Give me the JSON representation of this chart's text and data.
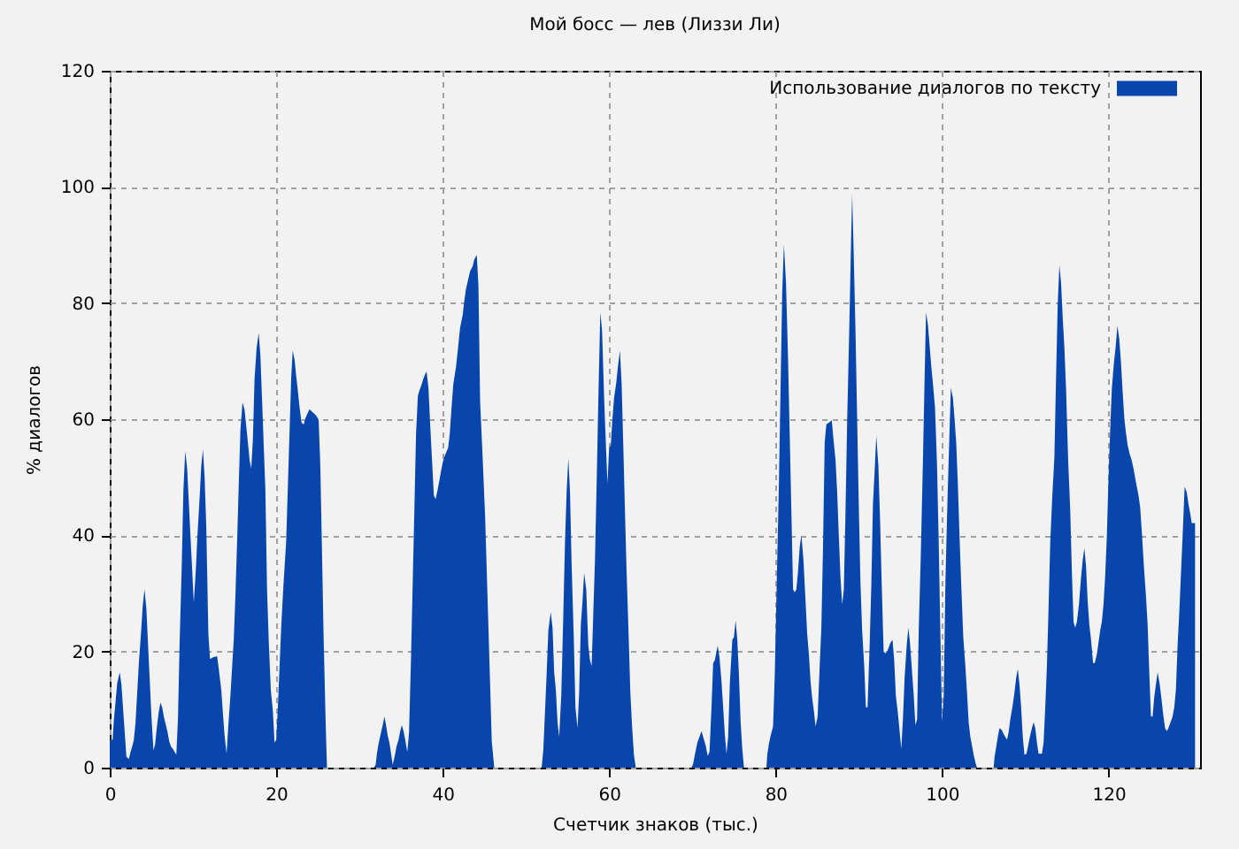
{
  "chart_data": {
    "type": "area",
    "title": "Мой босс — лев (Лиззи Ли)",
    "xlabel": "Счетчик знаков (тыс.)",
    "ylabel": "% диалогов",
    "x": [
      0,
      0.35,
      0.5,
      0.7,
      0.9,
      1.2,
      1.4,
      1.6,
      1.8,
      2.0,
      2.3,
      2.5,
      2.7,
      2.9,
      3.1,
      3.3,
      3.5,
      3.75,
      3.97,
      4.18,
      4.4,
      4.6,
      4.8,
      5.0,
      5.25,
      5.45,
      5.67,
      5.9,
      6.1,
      6.3,
      6.5,
      6.7,
      6.95,
      7.15,
      7.37,
      7.6,
      7.8,
      8.0,
      8.2,
      8.4,
      8.65,
      8.85,
      9.07,
      9.3,
      9.5,
      9.7,
      9.9,
      10.1,
      10.35,
      10.55,
      10.78,
      11.0,
      11.2,
      11.4,
      11.6,
      11.85,
      12.05,
      12.4,
      12.9,
      13.1,
      13.4,
      13.6,
      13.8,
      14.04,
      14.25,
      14.5,
      14.7,
      14.9,
      15.1,
      15.3,
      15.5,
      15.7,
      15.95,
      16.2,
      16.4,
      16.6,
      16.8,
      17.0,
      17.2,
      17.4,
      17.65,
      17.9,
      18.1,
      18.3,
      18.5,
      18.7,
      18.9,
      19.1,
      19.35,
      19.6,
      19.8,
      20.0,
      20.2,
      20.4,
      20.6,
      20.85,
      21.2,
      21.4,
      21.6,
      21.8,
      21.98,
      22.2,
      22.4,
      22.6,
      22.8,
      23.05,
      23.3,
      23.5,
      23.7,
      24.0,
      24.3,
      24.6,
      24.8,
      25.1,
      25.3,
      25.5,
      25.7,
      25.95,
      26.1,
      31.75,
      31.95,
      32.1,
      32.3,
      32.55,
      32.8,
      33.0,
      33.2,
      33.4,
      33.6,
      33.8,
      34.0,
      34.25,
      34.45,
      34.7,
      34.9,
      35.1,
      35.3,
      35.5,
      35.75,
      35.96,
      36.2,
      36.4,
      36.6,
      36.8,
      37.02,
      37.2,
      37.45,
      37.65,
      37.87,
      38.08,
      38.3,
      38.5,
      38.72,
      38.94,
      39.15,
      39.4,
      39.6,
      39.8,
      40.0,
      40.2,
      40.4,
      40.65,
      40.85,
      41.05,
      41.27,
      41.6,
      41.9,
      42.1,
      42.4,
      42.6,
      42.8,
      43.05,
      43.3,
      43.6,
      43.8,
      44.1,
      44.3,
      44.5,
      44.8,
      45.1,
      45.3,
      45.5,
      45.7,
      45.9,
      46.2,
      51.9,
      52.1,
      52.3,
      52.5,
      52.7,
      52.98,
      53.2,
      53.4,
      53.6,
      53.8,
      54.0,
      54.25,
      54.5,
      54.7,
      54.9,
      55.1,
      55.3,
      55.5,
      55.75,
      55.95,
      56.2,
      56.4,
      56.6,
      56.8,
      57.0,
      57.25,
      57.5,
      57.7,
      57.9,
      58.1,
      58.3,
      58.5,
      58.7,
      58.94,
      59.15,
      59.4,
      59.6,
      59.8,
      60.0,
      60.2,
      60.4,
      60.6,
      60.85,
      61.07,
      61.3,
      61.5,
      61.7,
      61.9,
      62.1,
      62.35,
      62.55,
      62.75,
      62.98,
      63.2,
      69.9,
      70.1,
      70.3,
      70.6,
      70.9,
      71.1,
      71.3,
      71.6,
      71.85,
      72.06,
      72.3,
      72.5,
      72.7,
      73.05,
      73.26,
      73.5,
      73.7,
      73.9,
      74.1,
      74.3,
      74.5,
      74.8,
      75.0,
      75.2,
      75.4,
      75.6,
      75.8,
      76.0,
      76.2,
      78.9,
      79.0,
      79.2,
      79.4,
      79.7,
      79.9,
      80.15,
      80.4,
      80.6,
      80.8,
      81.0,
      81.25,
      81.5,
      81.7,
      81.9,
      82.1,
      82.3,
      82.5,
      82.7,
      82.9,
      83.1,
      83.35,
      83.6,
      83.8,
      84.0,
      84.2,
      84.4,
      84.6,
      84.8,
      85.05,
      85.3,
      85.5,
      85.7,
      85.9,
      86.1,
      86.3,
      86.5,
      86.75,
      86.95,
      87.2,
      87.4,
      87.6,
      87.8,
      88.0,
      88.2,
      88.4,
      88.6,
      88.85,
      89.07,
      89.2,
      89.35,
      89.6,
      89.8,
      90.0,
      90.2,
      90.4,
      90.65,
      90.85,
      91.05,
      91.3,
      91.5,
      91.7,
      91.9,
      92.1,
      92.35,
      92.55,
      92.75,
      92.98,
      93.2,
      93.4,
      93.6,
      93.8,
      94.05,
      94.25,
      94.45,
      94.7,
      94.9,
      95.1,
      95.3,
      95.5,
      95.75,
      95.95,
      96.15,
      96.4,
      96.6,
      96.8,
      97.0,
      97.2,
      97.45,
      97.7,
      97.9,
      98.08,
      98.3,
      98.5,
      98.7,
      98.9,
      99.15,
      99.4,
      99.6,
      99.8,
      100.0,
      100.2,
      100.4,
      100.65,
      100.85,
      101.06,
      101.3,
      101.5,
      101.7,
      101.9,
      102.1,
      102.3,
      102.55,
      102.8,
      103.0,
      103.2,
      103.4,
      103.6,
      103.8,
      104.04,
      104.2,
      106.2,
      106.3,
      106.5,
      106.7,
      106.9,
      107.15,
      107.4,
      107.6,
      107.8,
      108.0,
      108.2,
      108.45,
      108.7,
      108.9,
      109.1,
      109.3,
      109.5,
      109.7,
      109.9,
      110.15,
      110.35,
      110.55,
      110.8,
      111.0,
      111.2,
      111.4,
      111.6,
      112.0,
      112.2,
      112.4,
      112.6,
      112.8,
      113.0,
      113.25,
      113.5,
      113.7,
      113.9,
      114.1,
      114.3,
      114.5,
      114.7,
      114.9,
      115.15,
      115.4,
      115.6,
      115.8,
      116.0,
      116.2,
      116.45,
      116.7,
      116.9,
      117.1,
      117.3,
      117.5,
      117.7,
      117.9,
      118.15,
      118.35,
      118.6,
      118.8,
      119.0,
      119.2,
      119.4,
      119.6,
      119.8,
      120.0,
      120.2,
      120.4,
      120.65,
      120.85,
      121.07,
      121.3,
      121.5,
      121.7,
      121.9,
      122.1,
      122.3,
      122.55,
      122.77,
      123.0,
      123.2,
      123.4,
      123.6,
      123.8,
      124.04,
      124.25,
      124.5,
      124.7,
      124.9,
      125.1,
      125.3,
      125.5,
      125.7,
      125.9,
      126.15,
      126.4,
      126.6,
      126.8,
      127.0,
      127.2,
      127.45,
      127.7,
      127.9,
      128.1,
      128.3,
      128.5,
      128.7,
      128.9,
      129.15,
      129.4,
      129.6,
      129.8,
      130.0,
      130.2,
      130.4
    ],
    "series": [
      {
        "name": "Использование диалогов по тексту",
        "color": "#0846ad",
        "values": [
          4.8,
          4.8,
          8.3,
          11.4,
          14.6,
          16.4,
          14.4,
          10.2,
          6.1,
          1.9,
          1.5,
          2.7,
          3.6,
          4.8,
          7.8,
          12.9,
          18.0,
          23.0,
          28.0,
          30.7,
          27.4,
          21.3,
          15.2,
          9.1,
          3.0,
          4.0,
          7.1,
          9.7,
          11.2,
          10.4,
          8.8,
          7.6,
          6.1,
          4.5,
          3.6,
          3.2,
          2.7,
          2.2,
          8.5,
          21.7,
          34.7,
          47.7,
          54.5,
          51.5,
          45.7,
          39.8,
          34.2,
          28.4,
          34.2,
          40.3,
          45.9,
          52.0,
          54.8,
          49.9,
          41.3,
          23.0,
          18.7,
          19.0,
          19.2,
          17.0,
          13.4,
          9.3,
          5.5,
          2.4,
          7.3,
          12.4,
          17.3,
          22.0,
          29.6,
          38.8,
          48.7,
          58.1,
          62.9,
          61.6,
          58.8,
          56.0,
          53.0,
          51.5,
          56.5,
          67.0,
          72.3,
          74.8,
          71.0,
          63.4,
          55.5,
          47.9,
          30.7,
          22.0,
          13.4,
          9.8,
          4.3,
          4.8,
          10.4,
          17.3,
          24.1,
          30.9,
          39.0,
          48.4,
          57.6,
          67.0,
          71.8,
          70.3,
          67.5,
          64.9,
          62.1,
          59.4,
          59.1,
          60.1,
          60.8,
          61.7,
          61.3,
          60.9,
          60.6,
          59.9,
          52.0,
          37.3,
          22.2,
          7.3,
          0,
          0,
          0.5,
          2.4,
          4.1,
          5.8,
          7.3,
          8.8,
          7.3,
          5.5,
          4.3,
          2.4,
          0.5,
          2.0,
          3.6,
          4.8,
          6.3,
          7.3,
          6.3,
          4.8,
          2.7,
          6.0,
          19.0,
          31.7,
          44.4,
          57.3,
          64.0,
          64.9,
          65.9,
          66.8,
          67.7,
          68.2,
          65.2,
          59.1,
          53.0,
          46.9,
          46.2,
          47.9,
          49.4,
          51.0,
          52.5,
          53.5,
          54.2,
          55.0,
          57.4,
          61.6,
          65.9,
          69,
          73,
          75.8,
          77.9,
          80.4,
          82.4,
          84,
          85.5,
          86.3,
          87.5,
          88.3,
          82.9,
          63.1,
          53.5,
          43.3,
          33.7,
          24.1,
          14.4,
          4.5,
          0,
          0,
          3.2,
          9.8,
          16.4,
          23.6,
          26.8,
          24.1,
          16.4,
          13.4,
          7.8,
          5.3,
          12.4,
          26.6,
          38.8,
          47.7,
          53.3,
          47.4,
          34.7,
          22.5,
          10.4,
          6.8,
          12.9,
          24.6,
          28.6,
          33.5,
          30.7,
          21.0,
          18.5,
          17.5,
          26.6,
          35.7,
          48.9,
          63.1,
          78.4,
          75.3,
          63.7,
          56.0,
          48.9,
          55.0,
          55.5,
          60.1,
          63.7,
          66.2,
          69.2,
          71.8,
          66.2,
          55.5,
          44.4,
          33.7,
          22.5,
          12.9,
          7.3,
          2.2,
          0,
          0,
          0.7,
          2.2,
          4.3,
          5.5,
          6.3,
          5.3,
          3.8,
          2.0,
          2.7,
          10.4,
          18.0,
          18.5,
          21.0,
          19.0,
          14.9,
          10.4,
          5.8,
          2.4,
          5.3,
          14.4,
          22.0,
          22.5,
          25.3,
          22.0,
          15.9,
          7.8,
          3.2,
          0,
          0,
          2.2,
          4.1,
          5.5,
          7.1,
          15.9,
          32.7,
          48.9,
          65.4,
          81.9,
          90.1,
          83.5,
          70.3,
          57.1,
          43.9,
          30.7,
          30.2,
          30.7,
          33.9,
          38.0,
          40.0,
          35.7,
          28.6,
          23.0,
          19.5,
          14.9,
          11.9,
          9.8,
          7.1,
          8.8,
          17.5,
          24.1,
          38.0,
          56.0,
          59.1,
          59.3,
          59.5,
          59.8,
          56.6,
          53.0,
          47.4,
          39.8,
          32.7,
          28.1,
          30.7,
          43.9,
          59.7,
          75.3,
          90.6,
          98.7,
          90.6,
          75.3,
          60.1,
          44.9,
          31.7,
          23.6,
          17.5,
          10.4,
          10.4,
          21.0,
          31.2,
          45.4,
          51.0,
          57.1,
          52.0,
          42.8,
          31.7,
          20.0,
          19.7,
          20.0,
          20.7,
          21.5,
          22.0,
          18.5,
          12.4,
          9.3,
          6.3,
          3.2,
          8.3,
          15.4,
          21.0,
          24.1,
          21.5,
          16.4,
          12.4,
          7.3,
          8.3,
          23.6,
          36.8,
          52.5,
          66.7,
          78.4,
          76.3,
          72.8,
          69.2,
          66.2,
          62.1,
          52,
          38.8,
          23.0,
          7.8,
          12.4,
          31.7,
          45.9,
          55.5,
          65.4,
          63.7,
          60.1,
          56.0,
          48.9,
          39.8,
          31.7,
          22.5,
          17.5,
          12.9,
          7.8,
          5.3,
          3.8,
          2.2,
          0.7,
          0,
          0,
          1.7,
          3.5,
          5.3,
          6.8,
          6.5,
          5.8,
          5.3,
          4.8,
          6.1,
          8.3,
          10.4,
          12.9,
          15.4,
          17.0,
          14.4,
          10.4,
          5.3,
          2.2,
          2.4,
          3.8,
          5.3,
          6.8,
          7.8,
          6.8,
          4.3,
          2.4,
          2.4,
          4.3,
          10.4,
          17.5,
          27.6,
          38.8,
          46.9,
          53.5,
          67.2,
          79.9,
          86.5,
          83.5,
          77.4,
          72.3,
          65.2,
          53.0,
          44.4,
          33.7,
          25.1,
          24.1,
          25.1,
          28.1,
          32.7,
          35.7,
          37.8,
          34.7,
          28.6,
          24.6,
          22.0,
          18.0,
          18.0,
          19.5,
          21.5,
          23.6,
          25.1,
          28.1,
          33,
          39.8,
          49.9,
          58.1,
          65.2,
          69.7,
          72.3,
          76.1,
          73.7,
          69.7,
          64.7,
          60.1,
          57.6,
          55.5,
          54.0,
          53.0,
          51.5,
          49.9,
          48.4,
          46.9,
          44.9,
          39.8,
          34.7,
          29.6,
          24.6,
          16.4,
          8.8,
          8.8,
          12.2,
          14.4,
          16.4,
          14.4,
          11.4,
          8.8,
          6.8,
          6.3,
          6.8,
          7.8,
          8.8,
          10.4,
          13.4,
          21.0,
          26.6,
          33.2,
          39.8,
          48.4,
          47.4,
          45.4,
          43.9,
          42.1,
          42.1,
          42.1
        ]
      }
    ],
    "xlim": [
      0,
      131
    ],
    "ylim": [
      0,
      120
    ],
    "xticks": [
      0,
      20,
      40,
      60,
      80,
      100,
      120
    ],
    "yticks": [
      0,
      20,
      40,
      60,
      80,
      100,
      120
    ],
    "grid": true,
    "legend": "top right"
  }
}
